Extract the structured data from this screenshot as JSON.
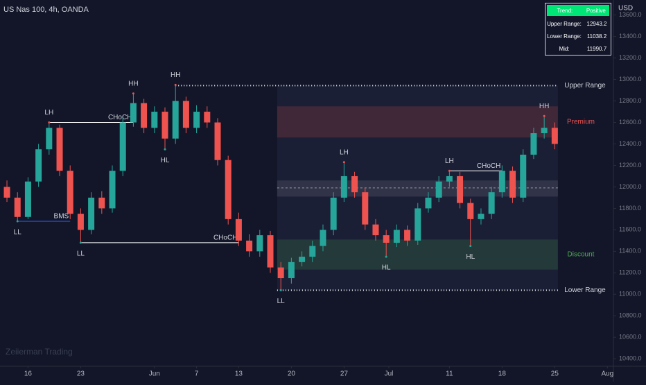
{
  "chart_data": {
    "type": "candlestick",
    "title": "US Nas 100, 4h, OANDA",
    "y_axis_label": "USD",
    "watermark": "Zeiierman Trading",
    "up_color": "#26a69a",
    "down_color": "#ef5350",
    "xlim": [
      -0.66,
      57.57
    ],
    "ylim": [
      10330,
      13740
    ],
    "xticks": [
      {
        "value": 2,
        "label": "16"
      },
      {
        "value": 7,
        "label": "23"
      },
      {
        "value": 14,
        "label": "Jun"
      },
      {
        "value": 18,
        "label": "7"
      },
      {
        "value": 22,
        "label": "13"
      },
      {
        "value": 27,
        "label": "20"
      },
      {
        "value": 32,
        "label": "27"
      },
      {
        "value": 36.25,
        "label": "Jul"
      },
      {
        "value": 42,
        "label": "11"
      },
      {
        "value": 47,
        "label": "18"
      },
      {
        "value": 52,
        "label": "25"
      },
      {
        "value": 57,
        "label": "Aug"
      }
    ],
    "yticks": [
      {
        "value": 10400,
        "label": "10400.0"
      },
      {
        "value": 10600,
        "label": "10600.0"
      },
      {
        "value": 10800,
        "label": "10800.0"
      },
      {
        "value": 11000,
        "label": "11000.0"
      },
      {
        "value": 11200,
        "label": "11200.0"
      },
      {
        "value": 11400,
        "label": "11400.0"
      },
      {
        "value": 11600,
        "label": "11600.0"
      },
      {
        "value": 11800,
        "label": "11800.0"
      },
      {
        "value": 12000,
        "label": "12000.0"
      },
      {
        "value": 12200,
        "label": "12200.0"
      },
      {
        "value": 12400,
        "label": "12400.0"
      },
      {
        "value": 12600,
        "label": "12600.0"
      },
      {
        "value": 12800,
        "label": "12800.0"
      },
      {
        "value": 13000,
        "label": "13000.0"
      },
      {
        "value": 13200,
        "label": "13200.0"
      },
      {
        "value": 13400,
        "label": "13400.0"
      },
      {
        "value": 13600,
        "label": "13600.0"
      }
    ],
    "candles": [
      [
        12000,
        12060,
        11860,
        11900
      ],
      [
        11900,
        11950,
        11680,
        11720
      ],
      [
        11720,
        12090,
        11700,
        12050
      ],
      [
        12050,
        12400,
        12000,
        12350
      ],
      [
        12350,
        12600,
        12300,
        12550
      ],
      [
        12550,
        12580,
        12100,
        12150
      ],
      [
        12150,
        12200,
        11700,
        11750
      ],
      [
        11750,
        11800,
        11480,
        11600
      ],
      [
        11600,
        11950,
        11560,
        11900
      ],
      [
        11900,
        11960,
        11750,
        11800
      ],
      [
        11800,
        12200,
        11760,
        12150
      ],
      [
        12150,
        12640,
        12100,
        12600
      ],
      [
        12600,
        12870,
        12560,
        12780
      ],
      [
        12780,
        12820,
        12500,
        12550
      ],
      [
        12550,
        12750,
        12500,
        12700
      ],
      [
        12700,
        12740,
        12350,
        12450
      ],
      [
        12450,
        12950,
        12400,
        12800
      ],
      [
        12800,
        12840,
        12500,
        12550
      ],
      [
        12550,
        12760,
        12500,
        12700
      ],
      [
        12700,
        12750,
        12550,
        12600
      ],
      [
        12600,
        12640,
        12200,
        12250
      ],
      [
        12250,
        12290,
        11650,
        11700
      ],
      [
        11700,
        11760,
        11450,
        11500
      ],
      [
        11500,
        11560,
        11350,
        11400
      ],
      [
        11400,
        11600,
        11350,
        11550
      ],
      [
        11550,
        11590,
        11200,
        11250
      ],
      [
        11250,
        11300,
        11038,
        11150
      ],
      [
        11150,
        11340,
        11100,
        11300
      ],
      [
        11300,
        11400,
        11260,
        11350
      ],
      [
        11350,
        11500,
        11300,
        11450
      ],
      [
        11450,
        11650,
        11400,
        11600
      ],
      [
        11600,
        11950,
        11550,
        11900
      ],
      [
        11900,
        12230,
        11860,
        12100
      ],
      [
        12100,
        12140,
        11900,
        11950
      ],
      [
        11950,
        11990,
        11600,
        11650
      ],
      [
        11650,
        11700,
        11500,
        11550
      ],
      [
        11550,
        11600,
        11350,
        11480
      ],
      [
        11480,
        11650,
        11440,
        11600
      ],
      [
        11600,
        11640,
        11450,
        11500
      ],
      [
        11500,
        11850,
        11460,
        11800
      ],
      [
        11800,
        11950,
        11760,
        11900
      ],
      [
        11900,
        12100,
        11860,
        12050
      ],
      [
        12050,
        12150,
        12000,
        12100
      ],
      [
        12100,
        12140,
        11800,
        11850
      ],
      [
        11850,
        11890,
        11450,
        11700
      ],
      [
        11700,
        11800,
        11650,
        11750
      ],
      [
        11750,
        12000,
        11700,
        11950
      ],
      [
        11950,
        12200,
        11900,
        12150
      ],
      [
        12150,
        12190,
        11850,
        11900
      ],
      [
        11900,
        12350,
        11860,
        12300
      ],
      [
        12300,
        12550,
        12260,
        12500
      ],
      [
        12500,
        12660,
        12450,
        12550
      ],
      [
        12550,
        12600,
        12350,
        12400
      ]
    ],
    "pivots": [
      {
        "label": "LL",
        "x": 1,
        "price": 11680,
        "pos": "below"
      },
      {
        "label": "LH",
        "x": 4,
        "price": 12600,
        "pos": "above"
      },
      {
        "label": "LL",
        "x": 7,
        "price": 11480,
        "pos": "below"
      },
      {
        "label": "HH",
        "x": 12,
        "price": 12870,
        "pos": "above"
      },
      {
        "label": "HL",
        "x": 15,
        "price": 12350,
        "pos": "below"
      },
      {
        "label": "HH",
        "x": 16,
        "price": 12950,
        "pos": "above"
      },
      {
        "label": "LL",
        "x": 26,
        "price": 11038,
        "pos": "below"
      },
      {
        "label": "LH",
        "x": 32,
        "price": 12230,
        "pos": "above"
      },
      {
        "label": "HL",
        "x": 36,
        "price": 11350,
        "pos": "below"
      },
      {
        "label": "LH",
        "x": 42,
        "price": 12150,
        "pos": "above"
      },
      {
        "label": "HL",
        "x": 44,
        "price": 11450,
        "pos": "below"
      },
      {
        "label": "HH",
        "x": 51,
        "price": 12660,
        "pos": "above"
      }
    ],
    "structure": [
      {
        "label": "CHoCH",
        "price": 12600,
        "x0": 4,
        "x1": 12,
        "color": "#ffffff"
      },
      {
        "label": "BMS",
        "price": 11680,
        "x0": 1,
        "x1": 6,
        "color": "#2962ff"
      },
      {
        "label": "CHoCH",
        "price": 11480,
        "x0": 7,
        "x1": 22,
        "color": "#ffffff"
      },
      {
        "label": "CHoCH",
        "price": 12150,
        "x0": 42,
        "x1": 47,
        "color": "#ffffff"
      }
    ],
    "range": {
      "start": 25.65,
      "end": 52.3,
      "upper_start": 16,
      "upper": 12943.2,
      "lower": 11038.2,
      "mid": 11990.7,
      "upper_label": "Upper Range",
      "lower_label": "Lower Range",
      "premium": {
        "label": "Premium",
        "top": 12750,
        "bottom": 12460,
        "color": "#ef5350"
      },
      "equilibrium": {
        "top": 12060,
        "bottom": 11910,
        "color": "#9598a1"
      },
      "discount": {
        "label": "Discount",
        "top": 11510,
        "bottom": 11230,
        "color": "#4caf50"
      }
    },
    "table": {
      "trend_label": "Trend:",
      "trend": "Positive",
      "upper_label": "Upper Range:",
      "lower_label": "Lower Range:",
      "mid_label": "Mid:"
    }
  }
}
